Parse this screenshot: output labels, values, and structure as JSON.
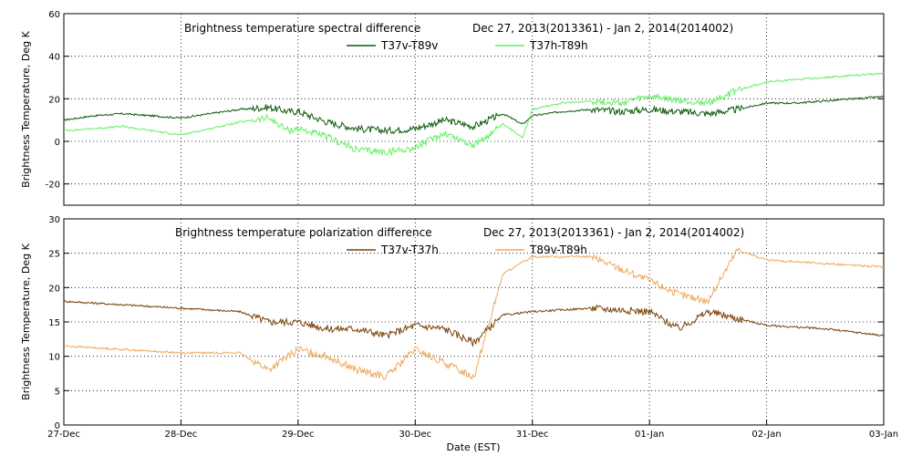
{
  "chart_data": [
    {
      "type": "line",
      "title": "Brightness temperature spectral difference",
      "date_range": "Dec 27, 2013(2013361) - Jan  2, 2014(2014002)",
      "ylabel": "Brightness Temperature, Deg K",
      "xlim": [
        "2013-12-27",
        "2014-01-03"
      ],
      "ylim": [
        -30,
        60
      ],
      "yticks": [
        -20,
        0,
        20,
        40,
        60
      ],
      "grid": true,
      "legend_position": "top-center",
      "series": [
        {
          "name": "T37v-T89v",
          "color": "#0b5a0b",
          "points": [
            [
              "2013-12-27 00:00",
              10
            ],
            [
              "2013-12-27 06:00",
              12
            ],
            [
              "2013-12-27 12:00",
              13
            ],
            [
              "2013-12-27 18:00",
              12
            ],
            [
              "2013-12-28 00:00",
              11
            ],
            [
              "2013-12-28 06:00",
              13
            ],
            [
              "2013-12-28 12:00",
              15
            ],
            [
              "2013-12-28 18:00",
              16
            ],
            [
              "2013-12-28 22:00",
              14
            ],
            [
              "2013-12-29 00:00",
              14
            ],
            [
              "2013-12-29 06:00",
              9
            ],
            [
              "2013-12-29 12:00",
              6
            ],
            [
              "2013-12-29 18:00",
              5
            ],
            [
              "2013-12-30 00:00",
              6
            ],
            [
              "2013-12-30 06:00",
              10
            ],
            [
              "2013-12-30 12:00",
              7
            ],
            [
              "2013-12-30 18:00",
              13
            ],
            [
              "2013-12-30 22:00",
              8
            ],
            [
              "2013-12-31 00:00",
              12
            ],
            [
              "2013-12-31 06:00",
              14
            ],
            [
              "2013-12-31 12:00",
              15
            ],
            [
              "2013-12-31 18:00",
              14
            ],
            [
              "2014-01-01 00:00",
              15
            ],
            [
              "2014-01-01 06:00",
              14
            ],
            [
              "2014-01-01 12:00",
              13
            ],
            [
              "2014-01-01 18:00",
              15
            ],
            [
              "2014-01-02 00:00",
              18
            ],
            [
              "2014-01-02 06:00",
              18
            ],
            [
              "2014-01-02 12:00",
              19
            ],
            [
              "2014-01-02 18:00",
              20
            ],
            [
              "2014-01-03 00:00",
              21
            ]
          ]
        },
        {
          "name": "T37h-T89h",
          "color": "#66ee66",
          "points": [
            [
              "2013-12-27 00:00",
              5
            ],
            [
              "2013-12-27 06:00",
              6
            ],
            [
              "2013-12-27 12:00",
              7
            ],
            [
              "2013-12-27 18:00",
              5
            ],
            [
              "2013-12-28 00:00",
              3
            ],
            [
              "2013-12-28 06:00",
              6
            ],
            [
              "2013-12-28 12:00",
              9
            ],
            [
              "2013-12-28 18:00",
              11
            ],
            [
              "2013-12-28 22:00",
              5
            ],
            [
              "2013-12-29 00:00",
              6
            ],
            [
              "2013-12-29 06:00",
              2
            ],
            [
              "2013-12-29 12:00",
              -4
            ],
            [
              "2013-12-29 18:00",
              -5
            ],
            [
              "2013-12-30 00:00",
              -3
            ],
            [
              "2013-12-30 06:00",
              4
            ],
            [
              "2013-12-30 12:00",
              -2
            ],
            [
              "2013-12-30 18:00",
              8
            ],
            [
              "2013-12-30 22:00",
              2
            ],
            [
              "2013-12-31 00:00",
              15
            ],
            [
              "2013-12-31 06:00",
              18
            ],
            [
              "2013-12-31 12:00",
              19
            ],
            [
              "2013-12-31 18:00",
              18
            ],
            [
              "2014-01-01 00:00",
              21
            ],
            [
              "2014-01-01 06:00",
              19
            ],
            [
              "2014-01-01 12:00",
              18
            ],
            [
              "2014-01-01 18:00",
              24
            ],
            [
              "2014-01-02 00:00",
              28
            ],
            [
              "2014-01-02 06:00",
              29
            ],
            [
              "2014-01-02 12:00",
              30
            ],
            [
              "2014-01-02 18:00",
              31
            ],
            [
              "2014-01-03 00:00",
              32
            ]
          ]
        }
      ]
    },
    {
      "type": "line",
      "title": "Brightness temperature polarization difference",
      "date_range": "Dec 27, 2013(2013361) - Jan  2, 2014(2014002)",
      "ylabel": "Brightness Temperature, Deg K",
      "xlabel": "Date (EST)",
      "xlim": [
        "2013-12-27",
        "2014-01-03"
      ],
      "ylim": [
        0,
        30
      ],
      "yticks": [
        0,
        5,
        10,
        15,
        20,
        25,
        30
      ],
      "xticks": [
        "27-Dec",
        "28-Dec",
        "29-Dec",
        "30-Dec",
        "31-Dec",
        "01-Jan",
        "02-Jan",
        "03-Jan"
      ],
      "grid": true,
      "legend_position": "top-center",
      "series": [
        {
          "name": "T37v-T37h",
          "color": "#7a4208",
          "points": [
            [
              "2013-12-27 00:00",
              18
            ],
            [
              "2013-12-27 12:00",
              17.5
            ],
            [
              "2013-12-28 00:00",
              17
            ],
            [
              "2013-12-28 12:00",
              16.5
            ],
            [
              "2013-12-28 18:00",
              15
            ],
            [
              "2013-12-29 00:00",
              15
            ],
            [
              "2013-12-29 06:00",
              14
            ],
            [
              "2013-12-29 12:00",
              14
            ],
            [
              "2013-12-29 18:00",
              13
            ],
            [
              "2013-12-30 00:00",
              14.5
            ],
            [
              "2013-12-30 06:00",
              14
            ],
            [
              "2013-12-30 12:00",
              12
            ],
            [
              "2013-12-30 18:00",
              16
            ],
            [
              "2013-12-31 00:00",
              16.5
            ],
            [
              "2013-12-31 12:00",
              17
            ],
            [
              "2014-01-01 00:00",
              16.5
            ],
            [
              "2014-01-01 06:00",
              14
            ],
            [
              "2014-01-01 12:00",
              16.5
            ],
            [
              "2014-01-01 18:00",
              15.5
            ],
            [
              "2014-01-02 00:00",
              14.5
            ],
            [
              "2014-01-02 12:00",
              14
            ],
            [
              "2014-01-03 00:00",
              13
            ]
          ]
        },
        {
          "name": "T89v-T89h",
          "color": "#f0a860",
          "points": [
            [
              "2013-12-27 00:00",
              11.5
            ],
            [
              "2013-12-27 12:00",
              11
            ],
            [
              "2013-12-28 00:00",
              10.5
            ],
            [
              "2013-12-28 12:00",
              10.5
            ],
            [
              "2013-12-28 18:00",
              8
            ],
            [
              "2013-12-29 00:00",
              11
            ],
            [
              "2013-12-29 06:00",
              10
            ],
            [
              "2013-12-29 12:00",
              8
            ],
            [
              "2013-12-29 18:00",
              7
            ],
            [
              "2013-12-30 00:00",
              11
            ],
            [
              "2013-12-30 06:00",
              9
            ],
            [
              "2013-12-30 12:00",
              7
            ],
            [
              "2013-12-30 18:00",
              22
            ],
            [
              "2013-12-31 00:00",
              24.5
            ],
            [
              "2013-12-31 12:00",
              24.5
            ],
            [
              "2014-01-01 00:00",
              21
            ],
            [
              "2014-01-01 06:00",
              19
            ],
            [
              "2014-01-01 12:00",
              18
            ],
            [
              "2014-01-01 18:00",
              25.5
            ],
            [
              "2014-01-02 00:00",
              24
            ],
            [
              "2014-01-02 12:00",
              23.5
            ],
            [
              "2014-01-03 00:00",
              23
            ]
          ]
        }
      ]
    }
  ]
}
